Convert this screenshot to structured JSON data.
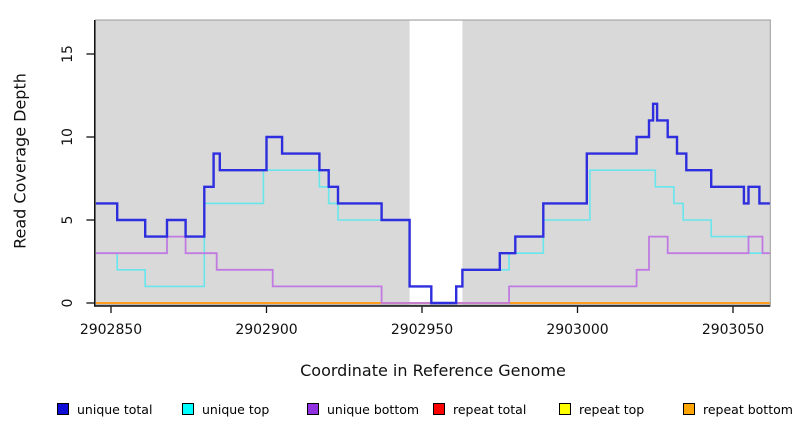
{
  "axes": {
    "x_label": "Coordinate in Reference Genome",
    "y_label": "Read Coverage Depth"
  },
  "chart_data": {
    "type": "step-line",
    "title": "",
    "xlabel": "Coordinate in Reference Genome",
    "ylabel": "Read Coverage Depth",
    "x_range": [
      2902845,
      2903062
    ],
    "ylim": [
      0,
      17.05
    ],
    "x_ticks": [
      2902850,
      2902900,
      2902950,
      2903000,
      2903050
    ],
    "y_ticks": [
      0,
      5,
      10,
      15
    ],
    "grid": false,
    "panel_bg": "#d9d9d9",
    "panel_border": "#9a9a9a",
    "axis_color": "#111111",
    "gap_region": {
      "start": 2902946,
      "end": 2902963,
      "fill": "#ffffff"
    },
    "legend_position": "bottom",
    "series": [
      {
        "name": "unique total",
        "line_color": "#2e2ede",
        "legend_color": "#0d0dd6",
        "steps": [
          [
            2902845,
            6
          ],
          [
            2902852,
            5
          ],
          [
            2902861,
            4
          ],
          [
            2902868,
            5
          ],
          [
            2902874,
            4
          ],
          [
            2902880,
            7
          ],
          [
            2902883,
            9
          ],
          [
            2902885,
            8
          ],
          [
            2902900,
            10
          ],
          [
            2902905,
            9
          ],
          [
            2902917,
            8
          ],
          [
            2902920,
            7
          ],
          [
            2902923,
            6
          ],
          [
            2902937,
            5
          ],
          [
            2902946,
            1
          ],
          [
            2902953,
            0
          ],
          [
            2902961,
            1
          ],
          [
            2902963,
            2
          ],
          [
            2902975,
            3
          ],
          [
            2902980,
            4
          ],
          [
            2902989,
            6
          ],
          [
            2903003,
            9
          ],
          [
            2903019,
            10
          ],
          [
            2903023,
            11
          ],
          [
            2903024.3,
            12
          ],
          [
            2903025.6,
            11
          ],
          [
            2903029,
            10
          ],
          [
            2903032,
            9
          ],
          [
            2903035,
            8
          ],
          [
            2903043,
            7
          ],
          [
            2903053.5,
            6
          ],
          [
            2903055,
            7
          ],
          [
            2903058.5,
            6
          ]
        ]
      },
      {
        "name": "unique top",
        "line_color": "#68e6ec",
        "legend_color": "#00ffff",
        "steps": [
          [
            2902845,
            3
          ],
          [
            2902852,
            2
          ],
          [
            2902861,
            1
          ],
          [
            2902880,
            6
          ],
          [
            2902899,
            8
          ],
          [
            2902917,
            7
          ],
          [
            2902920,
            6
          ],
          [
            2902923,
            5
          ],
          [
            2902946,
            1
          ],
          [
            2902953,
            0
          ],
          [
            2902961,
            1
          ],
          [
            2902963,
            2
          ],
          [
            2902978,
            3
          ],
          [
            2902989,
            5
          ],
          [
            2903004,
            8
          ],
          [
            2903025,
            7
          ],
          [
            2903031,
            6
          ],
          [
            2903034,
            5
          ],
          [
            2903043,
            4
          ],
          [
            2903055,
            3
          ]
        ]
      },
      {
        "name": "unique bottom",
        "line_color": "#c07ae2",
        "legend_color": "#9130e0",
        "steps": [
          [
            2902845,
            3
          ],
          [
            2902868,
            4
          ],
          [
            2902874,
            3
          ],
          [
            2902884,
            2
          ],
          [
            2902902,
            1
          ],
          [
            2902937,
            0
          ],
          [
            2902978,
            1
          ],
          [
            2903019,
            2
          ],
          [
            2903023,
            4
          ],
          [
            2903029,
            3
          ],
          [
            2903055,
            4
          ],
          [
            2903059.5,
            3
          ]
        ]
      },
      {
        "name": "repeat total",
        "line_color": "#dd0000",
        "legend_color": "#ff0000",
        "steps": [
          [
            2902845,
            0
          ]
        ]
      },
      {
        "name": "repeat top",
        "line_color": "#f5f500",
        "legend_color": "#ffff00",
        "steps": [
          [
            2902845,
            0
          ]
        ]
      },
      {
        "name": "repeat bottom",
        "line_color": "#ff9d1e",
        "legend_color": "#ffa504",
        "steps": [
          [
            2902845,
            0
          ]
        ]
      }
    ]
  }
}
